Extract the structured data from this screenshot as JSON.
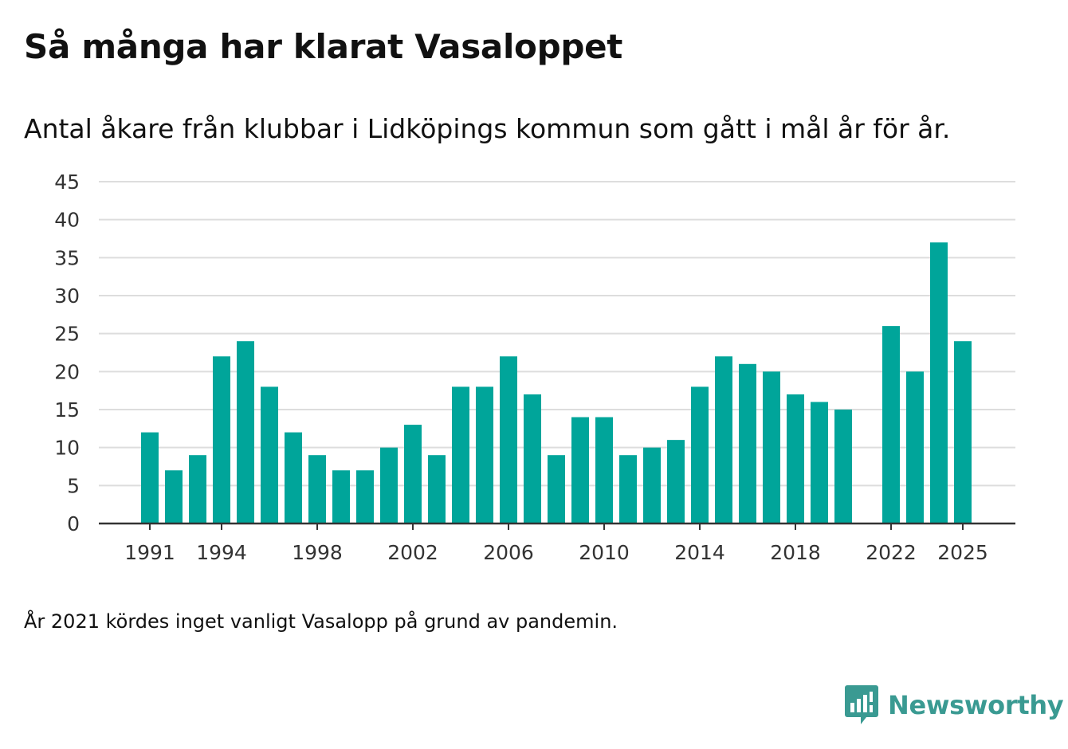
{
  "header": {
    "title": "Så många har klarat Vasaloppet",
    "subtitle": "Antal åkare från klubbar i Lidköpings kommun som gått i mål år för år."
  },
  "footnote": "År 2021 kördes inget vanligt Vasalopp på grund av pandemin.",
  "brand": {
    "name": "Newsworthy",
    "icon": "bar-chart-speech-bubble-icon",
    "color": "#3a9a92"
  },
  "colors": {
    "bar": "#00a59a",
    "grid": "#dddddd",
    "axis": "#333333"
  },
  "chart_data": {
    "type": "bar",
    "title": "Så många har klarat Vasaloppet",
    "subtitle": "Antal åkare från klubbar i Lidköpings kommun som gått i mål år för år.",
    "xlabel": "",
    "ylabel": "",
    "ylim": [
      0,
      45
    ],
    "yticks": [
      0,
      5,
      10,
      15,
      20,
      25,
      30,
      35,
      40,
      45
    ],
    "xtick_labels": [
      1991,
      1994,
      1998,
      2002,
      2006,
      2010,
      2014,
      2018,
      2022,
      2025
    ],
    "grid": true,
    "legend": "none",
    "categories": [
      1991,
      1992,
      1993,
      1994,
      1995,
      1996,
      1997,
      1998,
      1999,
      2000,
      2001,
      2002,
      2003,
      2004,
      2005,
      2006,
      2007,
      2008,
      2009,
      2010,
      2011,
      2012,
      2013,
      2014,
      2015,
      2016,
      2017,
      2018,
      2019,
      2020,
      2021,
      2022,
      2023,
      2024,
      2025
    ],
    "values": [
      12,
      7,
      9,
      22,
      24,
      18,
      12,
      9,
      7,
      7,
      10,
      13,
      9,
      18,
      18,
      22,
      17,
      9,
      14,
      14,
      9,
      10,
      11,
      18,
      22,
      21,
      20,
      17,
      16,
      15,
      null,
      26,
      20,
      37,
      24
    ]
  }
}
